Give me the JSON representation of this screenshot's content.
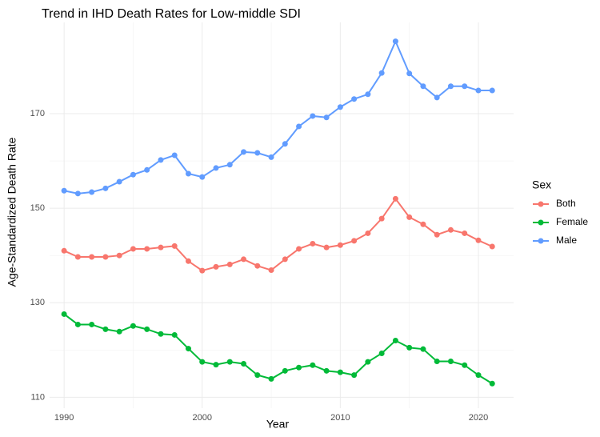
{
  "chart_data": {
    "type": "line",
    "title": "Trend in IHD Death Rates for Low-middle SDI",
    "x_label": "Year",
    "y_label": "Age-Standardized Death Rate",
    "legend_title": "Sex",
    "legend_position": "right",
    "grid": true,
    "x": [
      1990,
      1991,
      1992,
      1993,
      1994,
      1995,
      1996,
      1997,
      1998,
      1999,
      2000,
      2001,
      2002,
      2003,
      2004,
      2005,
      2006,
      2007,
      2008,
      2009,
      2010,
      2011,
      2012,
      2013,
      2014,
      2015,
      2016,
      2017,
      2018,
      2019,
      2020,
      2021
    ],
    "xlim": [
      1988.95,
      2022.55
    ],
    "xticks": [
      1990,
      2000,
      2010,
      2020
    ],
    "ylim": [
      107.7,
      189.3
    ],
    "yticks": [
      110,
      130,
      150,
      170
    ],
    "series": [
      {
        "name": "Both",
        "color": "#F8766D",
        "values": [
          141.0,
          139.7,
          139.7,
          139.7,
          140.0,
          141.4,
          141.4,
          141.7,
          142.0,
          138.8,
          136.8,
          137.6,
          138.1,
          139.2,
          137.8,
          136.9,
          139.2,
          141.4,
          142.5,
          141.7,
          142.2,
          143.1,
          144.7,
          147.8,
          152.0,
          148.1,
          146.6,
          144.4,
          145.4,
          144.7,
          143.2,
          141.9
        ]
      },
      {
        "name": "Female",
        "color": "#00BA38",
        "values": [
          127.6,
          125.4,
          125.4,
          124.4,
          123.9,
          125.1,
          124.4,
          123.4,
          123.2,
          120.3,
          117.5,
          116.9,
          117.5,
          117.1,
          114.7,
          113.9,
          115.6,
          116.3,
          116.8,
          115.6,
          115.3,
          114.7,
          117.5,
          119.3,
          122.0,
          120.5,
          120.2,
          117.6,
          117.6,
          116.8,
          114.7,
          112.9
        ]
      },
      {
        "name": "Male",
        "color": "#619CFF",
        "values": [
          153.7,
          153.1,
          153.4,
          154.2,
          155.6,
          157.1,
          158.1,
          160.2,
          161.2,
          157.3,
          156.6,
          158.5,
          159.2,
          161.9,
          161.7,
          160.8,
          163.6,
          167.3,
          169.5,
          169.2,
          171.4,
          173.1,
          174.1,
          178.6,
          185.3,
          178.5,
          175.8,
          173.4,
          175.8,
          175.8,
          174.9,
          174.9
        ]
      }
    ]
  }
}
